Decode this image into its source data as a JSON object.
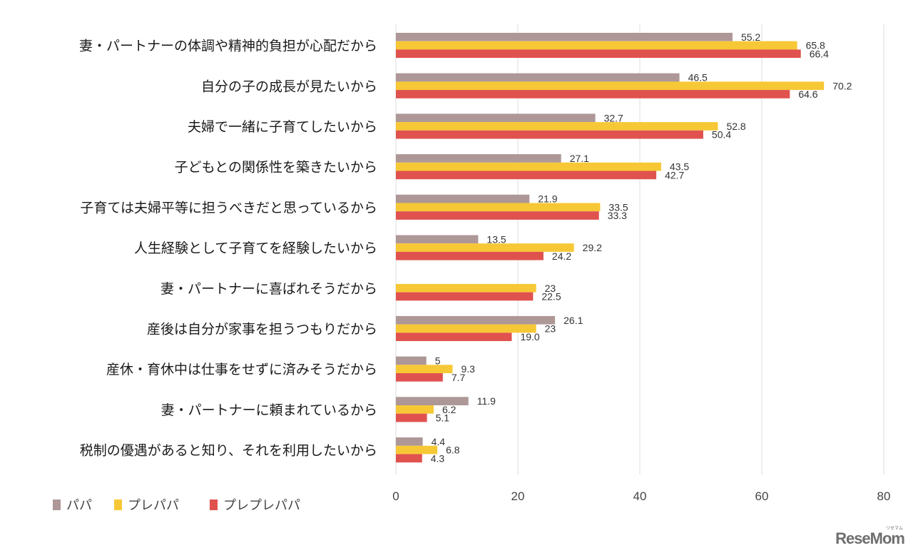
{
  "chart_data": {
    "type": "bar",
    "orientation": "horizontal",
    "title": "",
    "xlabel": "",
    "ylabel": "",
    "xlim": [
      0,
      80
    ],
    "xticks": [
      0,
      20,
      40,
      60,
      80
    ],
    "grid": true,
    "legend_position": "bottom-left",
    "categories": [
      "妻・パートナーの体調や精神的負担が心配だから",
      "自分の子の成長が見たいから",
      "夫婦で一緒に子育てしたいから",
      "子どもとの関係性を築きたいから",
      "子育ては夫婦平等に担うべきだと思っているから",
      "人生経験として子育てを経験したいから",
      "妻・パートナーに喜ばれそうだから",
      "産後は自分が家事を担うつもりだから",
      "産休・育休中は仕事をせずに済みそうだから",
      "妻・パートナーに頼まれているから",
      "税制の優遇があると知り、それを利用したいから"
    ],
    "series": [
      {
        "name": "パパ",
        "color": "#ae9797",
        "values": [
          55.2,
          46.5,
          32.7,
          27.1,
          21.9,
          13.5,
          null,
          26.1,
          5,
          11.9,
          4.4
        ],
        "labels": [
          "55.2",
          "46.5",
          "32.7",
          "27.1",
          "21.9",
          "13.5",
          "",
          "26.1",
          "5",
          "11.9",
          "4.4"
        ]
      },
      {
        "name": "プレパパ",
        "color": "#f7c836",
        "values": [
          65.8,
          70.2,
          52.8,
          43.5,
          33.5,
          29.2,
          23,
          23,
          9.3,
          6.2,
          6.8
        ],
        "labels": [
          "65.8",
          "70.2",
          "52.8",
          "43.5",
          "33.5",
          "29.2",
          "23",
          "23",
          "9.3",
          "6.2",
          "6.8"
        ]
      },
      {
        "name": "プレプレパパ",
        "color": "#e0524e",
        "values": [
          66.4,
          64.6,
          50.4,
          42.7,
          33.3,
          24.2,
          22.5,
          19.0,
          7.7,
          5.1,
          4.3
        ],
        "labels": [
          "66.4",
          "64.6",
          "50.4",
          "42.7",
          "33.3",
          "24.2",
          "22.5",
          "19.0",
          "7.7",
          "5.1",
          "4.3"
        ]
      }
    ]
  },
  "branding": {
    "logo_text": "ReseMom",
    "logo_kana": "リセマム"
  }
}
